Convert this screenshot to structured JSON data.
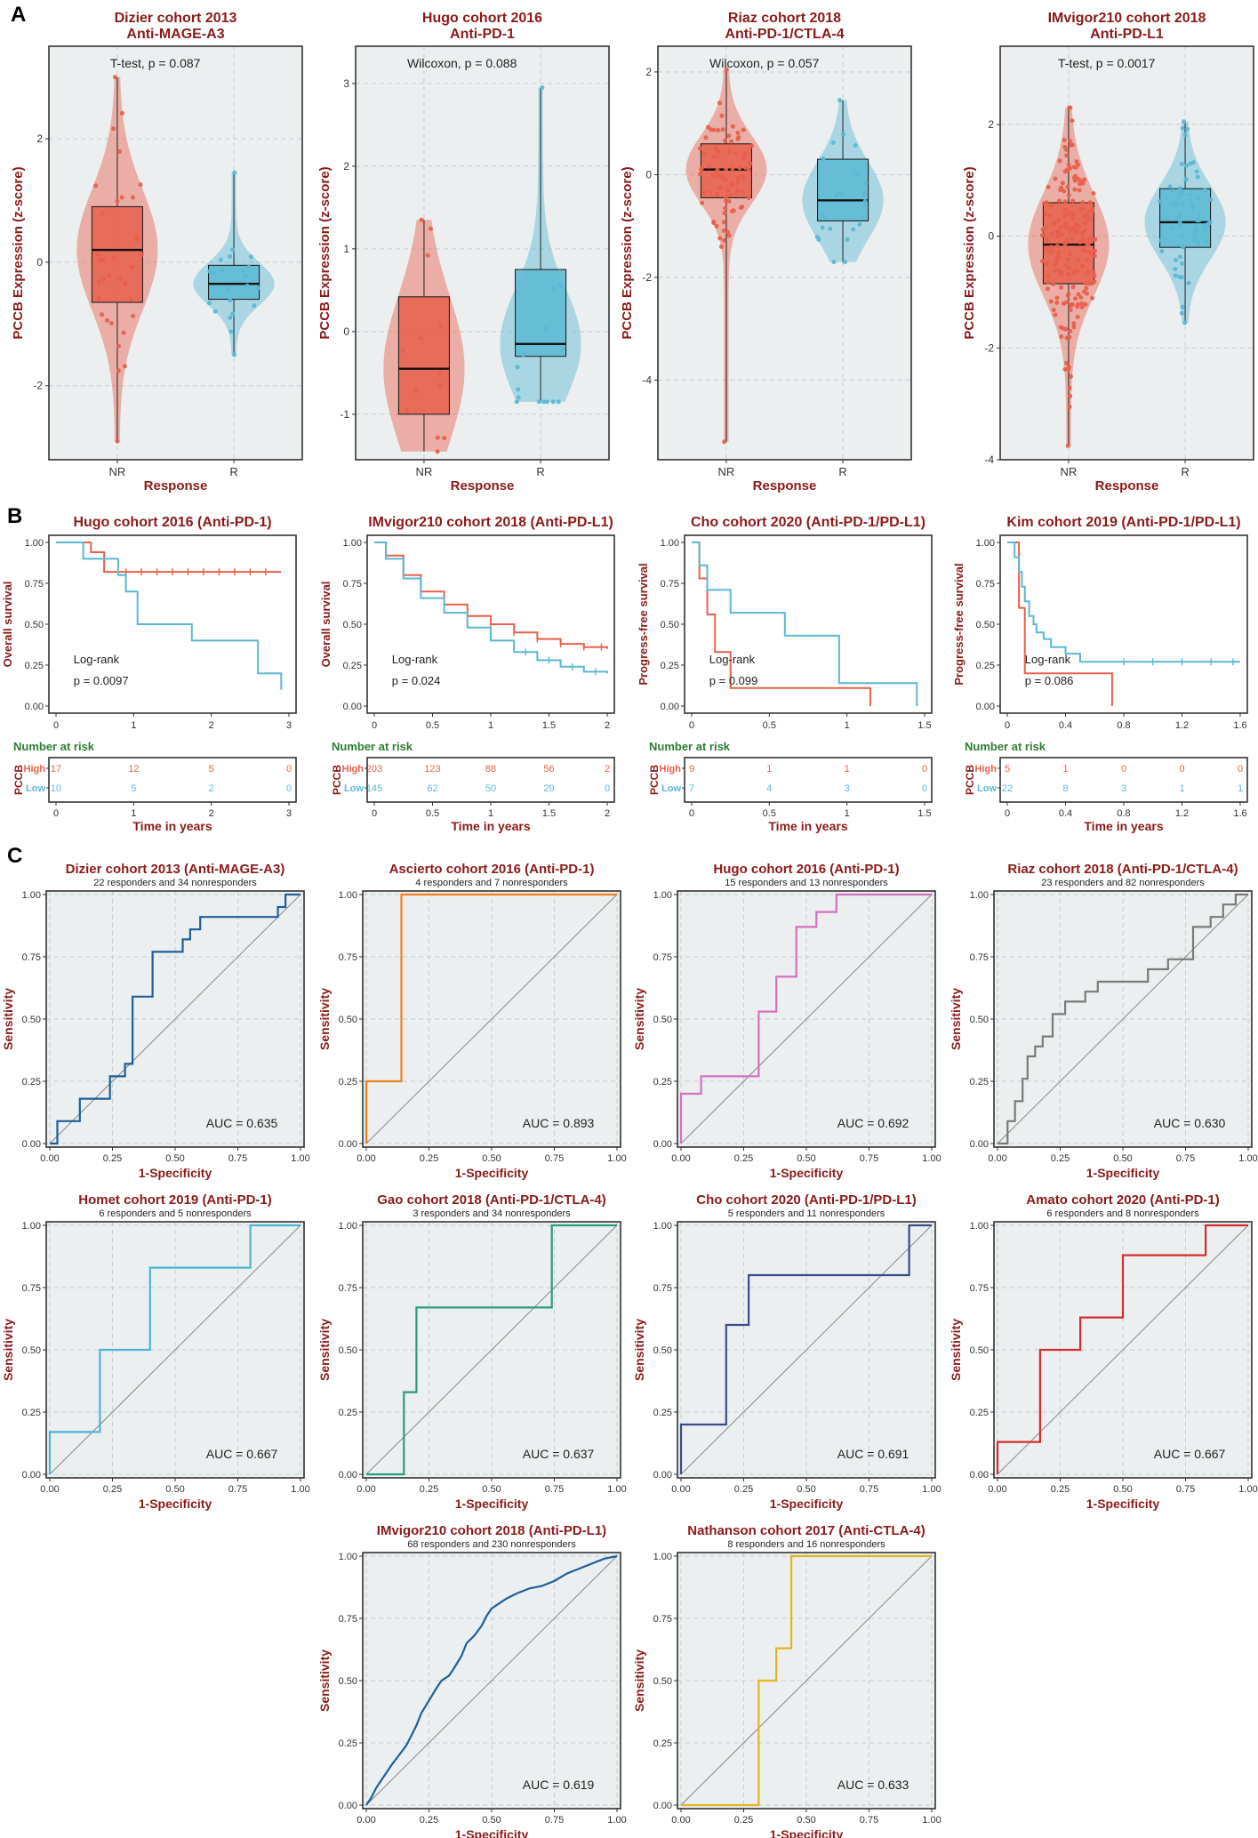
{
  "panel_labels": [
    "A",
    "B",
    "C"
  ],
  "colors": {
    "nr": "#e8604c",
    "r": "#5bb8d4",
    "high": "#e8604c",
    "low": "#5bb8d4",
    "title": "#8b1a1a",
    "risk_title": "#2e7d32",
    "panel_bg": "#ebeff0"
  },
  "chart_data": [
    {
      "type": "violin-box",
      "title": "Dizier cohort 2013",
      "subtitle": "Anti-MAGE-A3",
      "ylabel": "PCCB Expression (z-score)",
      "xlabel": "Response",
      "categories": [
        "NR",
        "R"
      ],
      "ylim": [
        -3.2,
        3.5
      ],
      "yticks": [
        -2,
        0,
        2
      ],
      "test_label": "T-test, p = 0.087",
      "groups": [
        {
          "name": "NR",
          "min": -2.9,
          "q1": -0.65,
          "median": 0.2,
          "q3": 0.9,
          "max": 3.0,
          "n": 34
        },
        {
          "name": "R",
          "min": -1.5,
          "q1": -0.6,
          "median": -0.35,
          "q3": -0.05,
          "max": 1.45,
          "n": 22
        }
      ]
    },
    {
      "type": "violin-box",
      "title": "Hugo cohort 2016",
      "subtitle": "Anti-PD-1",
      "ylabel": "PCCB Expression (z-score)",
      "xlabel": "Response",
      "categories": [
        "NR",
        "R"
      ],
      "ylim": [
        -1.55,
        3.45
      ],
      "yticks": [
        -1,
        0,
        1,
        2,
        3
      ],
      "test_label": "Wilcoxon, p = 0.088",
      "groups": [
        {
          "name": "NR",
          "min": -1.45,
          "q1": -1.0,
          "median": -0.45,
          "q3": 0.42,
          "max": 1.35,
          "n": 13
        },
        {
          "name": "R",
          "min": -0.85,
          "q1": -0.3,
          "median": -0.15,
          "q3": 0.75,
          "max": 2.95,
          "n": 15
        }
      ]
    },
    {
      "type": "violin-box",
      "title": "Riaz cohort 2018",
      "subtitle": "Anti-PD-1/CTLA-4",
      "ylabel": "PCCB Expression (z-score)",
      "xlabel": "Response",
      "categories": [
        "NR",
        "R"
      ],
      "ylim": [
        -5.55,
        2.5
      ],
      "yticks": [
        -4,
        -2,
        0,
        2
      ],
      "test_label": "Wilcoxon, p = 0.057",
      "groups": [
        {
          "name": "NR",
          "min": -5.2,
          "q1": -0.45,
          "median": 0.1,
          "q3": 0.6,
          "max": 2.05,
          "n": 82
        },
        {
          "name": "R",
          "min": -1.7,
          "q1": -0.9,
          "median": -0.5,
          "q3": 0.3,
          "max": 1.45,
          "n": 23
        }
      ]
    },
    {
      "type": "violin-box",
      "title": "IMvigor210 cohort 2018",
      "subtitle": "Anti-PD-L1",
      "ylabel": "PCCB Expression (z-score)",
      "xlabel": "Response",
      "categories": [
        "NR",
        "R"
      ],
      "ylim": [
        -4.0,
        3.4
      ],
      "yticks": [
        -4,
        -2,
        0,
        2
      ],
      "test_label": "T-test, p = 0.0017",
      "groups": [
        {
          "name": "NR",
          "min": -3.75,
          "q1": -0.85,
          "median": -0.15,
          "q3": 0.6,
          "max": 2.3,
          "n": 230
        },
        {
          "name": "R",
          "min": -1.55,
          "q1": -0.2,
          "median": 0.25,
          "q3": 0.85,
          "max": 2.05,
          "n": 68
        }
      ]
    },
    {
      "type": "km",
      "title": "Hugo cohort 2016 (Anti-PD-1)",
      "ylabel": "Overall survival",
      "xlabel": "Time in years",
      "xlim": [
        0,
        3
      ],
      "xticks": [
        0,
        1,
        2,
        3
      ],
      "yticks": [
        0.0,
        0.25,
        0.5,
        0.75,
        1.0
      ],
      "ytick_labels": [
        "0.00",
        "0.25",
        "0.50",
        "0.75",
        "1.00"
      ],
      "logrank_label": "Log-rank",
      "p_label": "p = 0.0097",
      "series": [
        {
          "name": "High",
          "x": [
            0,
            0.45,
            0.62,
            2.9
          ],
          "y": [
            1.0,
            0.94,
            0.82,
            0.82
          ],
          "censored_x": [
            0.9,
            1.1,
            1.3,
            1.5,
            1.7,
            1.9,
            2.1,
            2.3,
            2.5,
            2.7
          ]
        },
        {
          "name": "Low",
          "x": [
            0,
            0.35,
            0.8,
            0.9,
            1.05,
            1.75,
            2.6,
            2.9
          ],
          "y": [
            1.0,
            0.9,
            0.8,
            0.7,
            0.5,
            0.4,
            0.2,
            0.1
          ],
          "censored_x": []
        }
      ],
      "risk": {
        "header": "Number at risk",
        "stratum": "PCCB",
        "labels": [
          "High",
          "Low"
        ],
        "times": [
          0,
          1,
          2,
          3
        ],
        "values": [
          [
            "17",
            "12",
            "5",
            "0"
          ],
          [
            "10",
            "5",
            "2",
            "0"
          ]
        ]
      }
    },
    {
      "type": "km",
      "title": "IMvigor210 cohort 2018 (Anti-PD-L1)",
      "ylabel": "Overall survival",
      "xlabel": "Time in years",
      "xlim": [
        0,
        2
      ],
      "xticks": [
        0,
        0.5,
        1,
        1.5,
        2
      ],
      "yticks": [
        0.0,
        0.25,
        0.5,
        0.75,
        1.0
      ],
      "ytick_labels": [
        "0.00",
        "0.25",
        "0.50",
        "0.75",
        "1.00"
      ],
      "logrank_label": "Log-rank",
      "p_label": "p = 0.024",
      "series": [
        {
          "name": "High",
          "x": [
            0,
            0.1,
            0.25,
            0.4,
            0.6,
            0.8,
            1.0,
            1.2,
            1.4,
            1.6,
            1.8,
            2.0
          ],
          "y": [
            1.0,
            0.92,
            0.8,
            0.7,
            0.62,
            0.55,
            0.5,
            0.45,
            0.41,
            0.38,
            0.36,
            0.35
          ],
          "censored_x": [
            1.0,
            1.2,
            1.4,
            1.6,
            1.8,
            1.95
          ]
        },
        {
          "name": "Low",
          "x": [
            0,
            0.1,
            0.25,
            0.4,
            0.6,
            0.8,
            1.0,
            1.2,
            1.4,
            1.6,
            1.8,
            2.0
          ],
          "y": [
            1.0,
            0.9,
            0.78,
            0.66,
            0.57,
            0.48,
            0.4,
            0.33,
            0.28,
            0.24,
            0.21,
            0.2
          ],
          "censored_x": [
            1.3,
            1.5,
            1.7,
            1.9
          ]
        }
      ],
      "risk": {
        "header": "Number at risk",
        "stratum": "PCCB",
        "labels": [
          "High",
          "Low"
        ],
        "times": [
          0,
          0.5,
          1,
          1.5,
          2
        ],
        "values": [
          [
            "203",
            "123",
            "88",
            "56",
            "2"
          ],
          [
            "145",
            "62",
            "50",
            "29",
            "0"
          ]
        ]
      }
    },
    {
      "type": "km",
      "title": "Cho cohort 2020 (Anti-PD-1/PD-L1)",
      "ylabel": "Progress-free survival",
      "xlabel": "Time in years",
      "xlim": [
        0,
        1.5
      ],
      "xticks": [
        0,
        0.5,
        1,
        1.5
      ],
      "yticks": [
        0.0,
        0.25,
        0.5,
        0.75,
        1.0
      ],
      "ytick_labels": [
        "0.00",
        "0.25",
        "0.50",
        "0.75",
        "1.00"
      ],
      "logrank_label": "Log-rank",
      "p_label": "p = 0.099",
      "series": [
        {
          "name": "High",
          "x": [
            0,
            0.05,
            0.1,
            0.15,
            0.25,
            1.15
          ],
          "y": [
            1.0,
            0.78,
            0.56,
            0.33,
            0.11,
            0.0
          ],
          "censored_x": []
        },
        {
          "name": "Low",
          "x": [
            0,
            0.05,
            0.1,
            0.25,
            0.6,
            0.95,
            1.45
          ],
          "y": [
            1.0,
            0.86,
            0.71,
            0.57,
            0.43,
            0.14,
            0.0
          ],
          "censored_x": []
        }
      ],
      "risk": {
        "header": "Number at risk",
        "stratum": "PCCB",
        "labels": [
          "High",
          "Low"
        ],
        "times": [
          0,
          0.5,
          1,
          1.5
        ],
        "values": [
          [
            "9",
            "1",
            "1",
            "0"
          ],
          [
            "7",
            "4",
            "3",
            "0"
          ]
        ]
      }
    },
    {
      "type": "km",
      "title": "Kim cohort 2019 (Anti-PD-1/PD-L1)",
      "ylabel": "Progress-free survival",
      "xlabel": "Time in years",
      "xlim": [
        0,
        1.6
      ],
      "xticks": [
        0,
        0.4,
        0.8,
        1.2,
        1.6
      ],
      "yticks": [
        0.0,
        0.25,
        0.5,
        0.75,
        1.0
      ],
      "ytick_labels": [
        "0.00",
        "0.25",
        "0.50",
        "0.75",
        "1.00"
      ],
      "logrank_label": "Log-rank",
      "p_label": "p = 0.086",
      "series": [
        {
          "name": "High",
          "x": [
            0,
            0.08,
            0.12,
            0.72
          ],
          "y": [
            1.0,
            0.6,
            0.2,
            0.0
          ],
          "censored_x": []
        },
        {
          "name": "Low",
          "x": [
            0,
            0.05,
            0.08,
            0.1,
            0.12,
            0.15,
            0.18,
            0.2,
            0.25,
            0.3,
            0.4,
            0.5,
            1.6
          ],
          "y": [
            1.0,
            0.91,
            0.82,
            0.73,
            0.64,
            0.55,
            0.5,
            0.45,
            0.41,
            0.36,
            0.32,
            0.27,
            0.27
          ],
          "censored_x": [
            0.8,
            1.0,
            1.2,
            1.4,
            1.55
          ]
        }
      ],
      "risk": {
        "header": "Number at risk",
        "stratum": "PCCB",
        "labels": [
          "High",
          "Low"
        ],
        "times": [
          0,
          0.4,
          0.8,
          1.2,
          1.6
        ],
        "values": [
          [
            "5",
            "1",
            "0",
            "0",
            "0"
          ],
          [
            "22",
            "8",
            "3",
            "1",
            "1"
          ]
        ]
      }
    },
    {
      "type": "roc",
      "title": "Dizier cohort 2013 (Anti-MAGE-A3)",
      "subtitle": "22 responders and 34 nonresponders",
      "xlabel": "1-Specificity",
      "ylabel": "Sensitivity",
      "auc_label": "AUC = 0.635",
      "color": "#1f5f99",
      "fpr": [
        0,
        0.03,
        0.03,
        0.12,
        0.12,
        0.24,
        0.24,
        0.3,
        0.3,
        0.33,
        0.33,
        0.41,
        0.41,
        0.53,
        0.53,
        0.56,
        0.56,
        0.6,
        0.6,
        0.91,
        0.91,
        0.94,
        0.94,
        1.0
      ],
      "tpr": [
        0,
        0,
        0.09,
        0.09,
        0.18,
        0.18,
        0.27,
        0.27,
        0.32,
        0.32,
        0.59,
        0.59,
        0.77,
        0.77,
        0.82,
        0.82,
        0.86,
        0.86,
        0.91,
        0.91,
        0.95,
        0.95,
        1.0,
        1.0
      ]
    },
    {
      "type": "roc",
      "title": "Ascierto cohort 2016 (Anti-PD-1)",
      "subtitle": "4 responders and 7 nonresponders",
      "xlabel": "1-Specificity",
      "ylabel": "Sensitivity",
      "auc_label": "AUC = 0.893",
      "color": "#f07f1e",
      "fpr": [
        0,
        0,
        0.14,
        0.14,
        1.0
      ],
      "tpr": [
        0,
        0.25,
        0.25,
        1.0,
        1.0
      ]
    },
    {
      "type": "roc",
      "title": "Hugo cohort 2016 (Anti-PD-1)",
      "subtitle": "15 responders and 13 nonresponders",
      "xlabel": "1-Specificity",
      "ylabel": "Sensitivity",
      "auc_label": "AUC = 0.692",
      "color": "#d66fc2",
      "fpr": [
        0,
        0,
        0.08,
        0.08,
        0.31,
        0.31,
        0.38,
        0.38,
        0.46,
        0.46,
        0.54,
        0.54,
        0.62,
        0.62,
        1.0
      ],
      "tpr": [
        0,
        0.2,
        0.2,
        0.27,
        0.27,
        0.53,
        0.53,
        0.67,
        0.67,
        0.87,
        0.87,
        0.93,
        0.93,
        1.0,
        1.0
      ]
    },
    {
      "type": "roc",
      "title": "Riaz cohort 2018 (Anti-PD-1/CTLA-4)",
      "subtitle": "23 responders and 82 nonresponders",
      "xlabel": "1-Specificity",
      "ylabel": "Sensitivity",
      "auc_label": "AUC = 0.630",
      "color": "#7a7a7a",
      "fpr": [
        0,
        0.04,
        0.04,
        0.07,
        0.07,
        0.1,
        0.1,
        0.12,
        0.12,
        0.15,
        0.15,
        0.18,
        0.18,
        0.22,
        0.22,
        0.27,
        0.27,
        0.35,
        0.35,
        0.4,
        0.4,
        0.6,
        0.6,
        0.68,
        0.68,
        0.78,
        0.78,
        0.85,
        0.85,
        0.9,
        0.9,
        0.95,
        0.95,
        1.0
      ],
      "tpr": [
        0,
        0,
        0.09,
        0.09,
        0.17,
        0.17,
        0.26,
        0.26,
        0.35,
        0.35,
        0.39,
        0.39,
        0.43,
        0.43,
        0.52,
        0.52,
        0.57,
        0.57,
        0.61,
        0.61,
        0.65,
        0.65,
        0.7,
        0.7,
        0.74,
        0.74,
        0.87,
        0.87,
        0.91,
        0.91,
        0.96,
        0.96,
        1.0,
        1.0
      ]
    },
    {
      "type": "roc",
      "title": "Homet cohort 2019 (Anti-PD-1)",
      "subtitle": "6 responders and 5 nonresponders",
      "xlabel": "1-Specificity",
      "ylabel": "Sensitivity",
      "auc_label": "AUC = 0.667",
      "color": "#4ab6d3",
      "fpr": [
        0,
        0,
        0.2,
        0.2,
        0.4,
        0.4,
        0.8,
        0.8,
        1.0
      ],
      "tpr": [
        0,
        0.17,
        0.17,
        0.5,
        0.5,
        0.83,
        0.83,
        1.0,
        1.0
      ]
    },
    {
      "type": "roc",
      "title": "Gao cohort 2018 (Anti-PD-1/CTLA-4)",
      "subtitle": "3 responders and 34 nonresponders",
      "xlabel": "1-Specificity",
      "ylabel": "Sensitivity",
      "auc_label": "AUC = 0.637",
      "color": "#2a9d7a",
      "fpr": [
        0,
        0.15,
        0.15,
        0.2,
        0.2,
        0.74,
        0.74,
        1.0
      ],
      "tpr": [
        0,
        0,
        0.33,
        0.33,
        0.67,
        0.67,
        1.0,
        1.0
      ]
    },
    {
      "type": "roc",
      "title": "Cho cohort 2020 (Anti-PD-1/PD-L1)",
      "subtitle": "5 responders and 11 nonresponders",
      "xlabel": "1-Specificity",
      "ylabel": "Sensitivity",
      "auc_label": "AUC = 0.691",
      "color": "#3a4a8c",
      "fpr": [
        0,
        0,
        0.18,
        0.18,
        0.27,
        0.27,
        0.91,
        0.91,
        1.0
      ],
      "tpr": [
        0,
        0.2,
        0.2,
        0.6,
        0.6,
        0.8,
        0.8,
        1.0,
        1.0
      ]
    },
    {
      "type": "roc",
      "title": "Amato cohort 2020 (Anti-PD-1)",
      "subtitle": "6 responders and 8 nonresponders",
      "xlabel": "1-Specificity",
      "ylabel": "Sensitivity",
      "auc_label": "AUC = 0.667",
      "color": "#d62c2c",
      "fpr": [
        0,
        0,
        0.17,
        0.17,
        0.33,
        0.33,
        0.5,
        0.5,
        0.83,
        0.83,
        1.0
      ],
      "tpr": [
        0,
        0.13,
        0.13,
        0.5,
        0.5,
        0.63,
        0.63,
        0.88,
        0.88,
        1.0,
        1.0
      ]
    },
    {
      "type": "roc",
      "title": "IMvigor210 cohort 2018 (Anti-PD-L1)",
      "subtitle": "68 responders and 230 nonresponders",
      "xlabel": "1-Specificity",
      "ylabel": "Sensitivity",
      "auc_label": "AUC = 0.619",
      "color": "#1f5f99",
      "fpr": [
        0,
        0.02,
        0.04,
        0.06,
        0.08,
        0.1,
        0.13,
        0.16,
        0.18,
        0.2,
        0.22,
        0.25,
        0.28,
        0.3,
        0.33,
        0.35,
        0.38,
        0.4,
        0.43,
        0.46,
        0.48,
        0.5,
        0.53,
        0.56,
        0.6,
        0.65,
        0.7,
        0.75,
        0.8,
        0.85,
        0.9,
        0.95,
        1.0
      ],
      "tpr": [
        0,
        0.03,
        0.07,
        0.1,
        0.13,
        0.16,
        0.2,
        0.24,
        0.28,
        0.32,
        0.37,
        0.42,
        0.47,
        0.5,
        0.52,
        0.55,
        0.6,
        0.65,
        0.68,
        0.72,
        0.76,
        0.79,
        0.81,
        0.83,
        0.85,
        0.87,
        0.88,
        0.9,
        0.93,
        0.95,
        0.97,
        0.99,
        1.0
      ]
    },
    {
      "type": "roc",
      "title": "Nathanson cohort 2017 (Anti-CTLA-4)",
      "subtitle": "8 responders and 16 nonresponders",
      "xlabel": "1-Specificity",
      "ylabel": "Sensitivity",
      "auc_label": "AUC = 0.633",
      "color": "#e6b41c",
      "fpr": [
        0,
        0.31,
        0.31,
        0.38,
        0.38,
        0.44,
        0.44,
        1.0
      ],
      "tpr": [
        0,
        0,
        0.5,
        0.5,
        0.63,
        0.63,
        1.0,
        1.0
      ]
    }
  ]
}
